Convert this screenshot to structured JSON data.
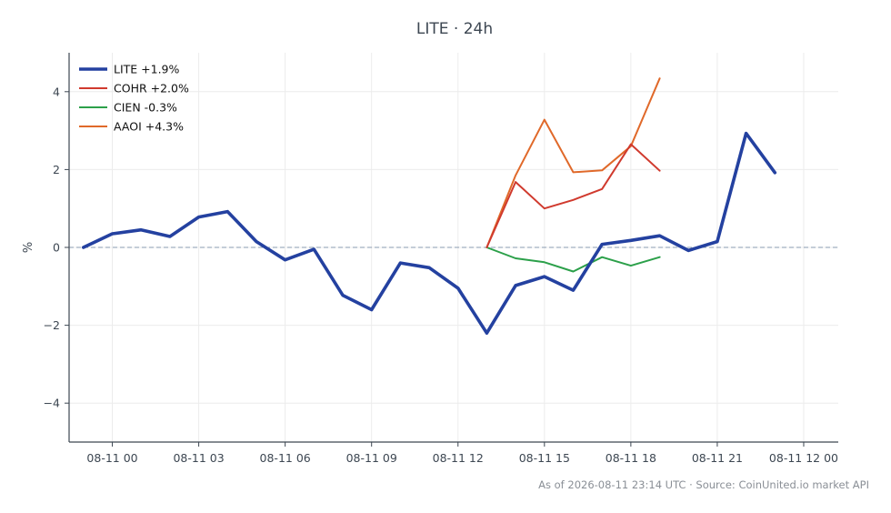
{
  "chart_data": {
    "type": "line",
    "title": "LITE · 24h",
    "ylabel": "%",
    "xlabel": "",
    "ylim": [
      -5,
      5
    ],
    "yticks": [
      -4,
      -2,
      0,
      2,
      4
    ],
    "ytick_labels": [
      "−4",
      "−2",
      "0",
      "2",
      "4"
    ],
    "xlim": [
      -1.5,
      25.2
    ],
    "xticks": [
      0,
      3,
      6,
      9,
      12,
      15,
      18,
      21,
      24
    ],
    "xtick_labels": [
      "08-11 00",
      "08-11 03",
      "08-11 06",
      "08-11 09",
      "08-11 12",
      "08-11 15",
      "08-11 18",
      "08-11 21",
      "08-11 12 00"
    ],
    "grid": true,
    "zero_reference_line": true,
    "legend_position": "top-left",
    "series": [
      {
        "name": "LITE +1.9%",
        "color": "#2441a0",
        "x": [
          -1,
          0,
          1,
          2,
          3,
          4,
          5,
          6,
          7,
          8,
          9,
          10,
          11,
          12,
          13,
          14,
          15,
          16,
          17,
          18,
          19,
          20,
          21,
          22,
          23
        ],
        "values": [
          0.0,
          0.35,
          0.45,
          0.28,
          0.78,
          0.92,
          0.15,
          -0.32,
          -0.05,
          -1.23,
          -1.6,
          -0.4,
          -0.52,
          -1.05,
          -2.2,
          -0.98,
          -0.75,
          -1.1,
          0.08,
          0.18,
          0.3,
          -0.08,
          0.15,
          2.93,
          1.92
        ]
      },
      {
        "name": "COHR +2.0%",
        "color": "#d03a2e",
        "x": [
          13,
          14,
          15,
          16,
          17,
          18,
          19
        ],
        "values": [
          0.0,
          1.68,
          1.0,
          1.22,
          1.5,
          2.65,
          1.97
        ]
      },
      {
        "name": "CIEN -0.3%",
        "color": "#2ca04a",
        "x": [
          13,
          14,
          15,
          16,
          17,
          18,
          19
        ],
        "values": [
          0.0,
          -0.28,
          -0.38,
          -0.62,
          -0.25,
          -0.47,
          -0.25
        ]
      },
      {
        "name": "AAOI +4.3%",
        "color": "#e0692a",
        "x": [
          13,
          14,
          15,
          16,
          17,
          18,
          19
        ],
        "values": [
          0.0,
          1.85,
          3.28,
          1.93,
          1.98,
          2.6,
          4.34
        ]
      }
    ]
  },
  "footer": "As of 2026-08-11 23:14 UTC · Source: CoinUnited.io market API"
}
